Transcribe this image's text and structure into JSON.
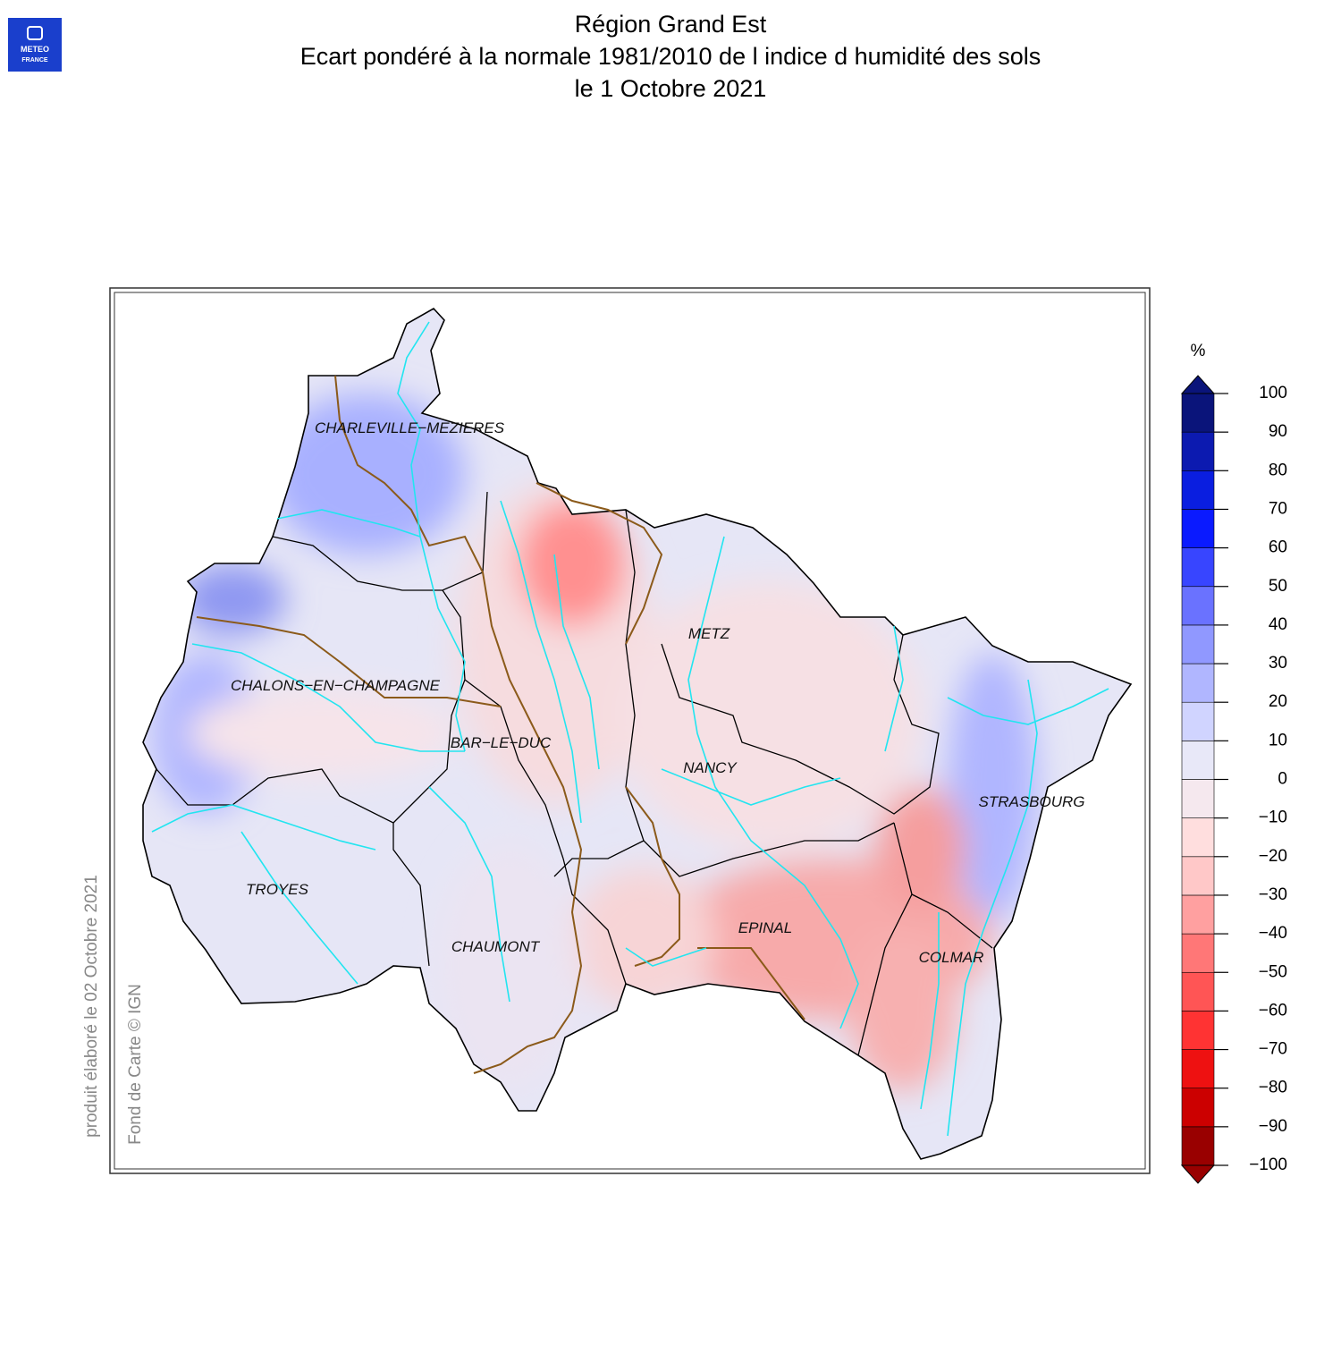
{
  "logo": {
    "line1": "METEO",
    "line2": "FRANCE"
  },
  "title": [
    "Région Grand Est",
    "Ecart pondéré à la normale 1981/2010 de l indice d humidité des sols",
    "le 1 Octobre 2021"
  ],
  "cities": [
    "CHARLEVILLE−MEZIERES",
    "METZ",
    "CHALONS−EN−CHAMPAGNE",
    "BAR−LE−DUC",
    "NANCY",
    "STRASBOURG",
    "TROYES",
    "EPINAL",
    "CHAUMONT",
    "COLMAR"
  ],
  "credits": {
    "produced": "produit élaboré le 02 Octobre 2021",
    "basemap": "Fond de Carte © IGN"
  },
  "colorbar": {
    "unit": "%",
    "ticks": [
      {
        "value": -100,
        "label": "−100"
      },
      {
        "value": -90,
        "label": "−90"
      },
      {
        "value": -80,
        "label": "−80"
      },
      {
        "value": -70,
        "label": "−70"
      },
      {
        "value": -60,
        "label": "−60"
      },
      {
        "value": -50,
        "label": "−50"
      },
      {
        "value": -40,
        "label": "−40"
      },
      {
        "value": -30,
        "label": "−30"
      },
      {
        "value": -20,
        "label": "−20"
      },
      {
        "value": -10,
        "label": "−10"
      },
      0,
      10,
      20,
      30,
      40,
      50,
      60,
      70,
      80,
      90,
      100
    ],
    "colors": [
      "#990000",
      "#cc0000",
      "#ee1111",
      "#ff3333",
      "#ff5555",
      "#ff7777",
      "#ffa0a0",
      "#ffc8c8",
      "#ffdede",
      "#f5e8ee",
      "#e8e8f8",
      "#d0d4ff",
      "#b0b6ff",
      "#9098ff",
      "#6a72ff",
      "#3845ff",
      "#0a1aff",
      "#0a1ee0",
      "#0c1ab0",
      "#0a147a"
    ]
  }
}
